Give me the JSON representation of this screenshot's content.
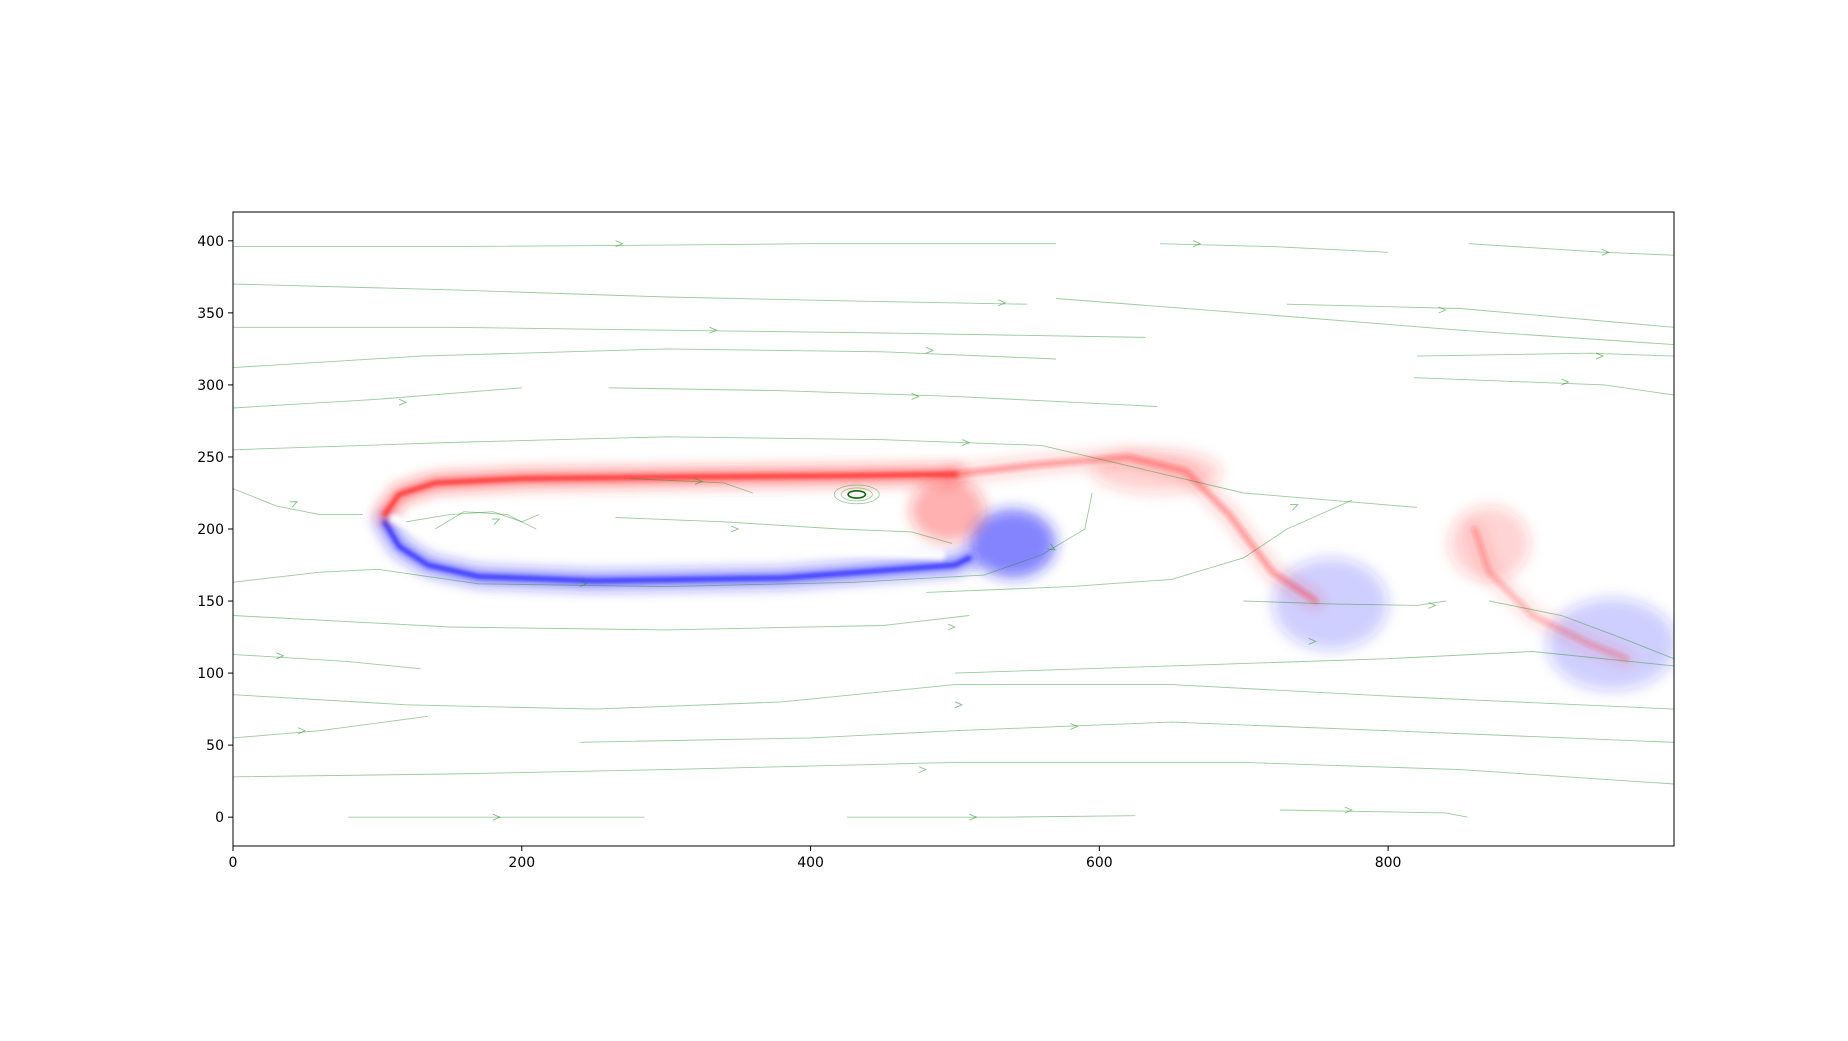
{
  "chart_data": {
    "type": "heatmap",
    "title": "",
    "xlabel": "",
    "ylabel": "",
    "xlim": [
      0,
      998
    ],
    "ylim": [
      420,
      -20
    ],
    "y_inverted": true,
    "grid": false,
    "legend": "none",
    "x_ticks": [
      0,
      200,
      400,
      600,
      800
    ],
    "y_ticks": [
      0,
      50,
      100,
      150,
      200,
      250,
      300,
      350,
      400
    ],
    "colormap": {
      "negative": "#2222ff",
      "zero": "#ffffff",
      "positive": "#ff2222"
    },
    "streamline_color": "#228b22",
    "field": {
      "extent": {
        "x": [
          0,
          998
        ],
        "y": [
          0,
          400
        ]
      },
      "background_shading": [
        {
          "y": [
            0,
            200
          ],
          "value": -0.08
        },
        {
          "y": [
            220,
            330
          ],
          "value": 0.05
        },
        {
          "y": [
            330,
            400
          ],
          "value": -0.02
        }
      ],
      "vortex_sheets": [
        {
          "sign": -1,
          "strength": 1.0,
          "points": [
            [
              105,
              205
            ],
            [
              115,
              188
            ],
            [
              135,
              175
            ],
            [
              170,
              167
            ],
            [
              250,
              164
            ],
            [
              380,
              166
            ],
            [
              500,
              175
            ],
            [
              510,
              180
            ]
          ]
        },
        {
          "sign": 1,
          "strength": 1.0,
          "points": [
            [
              105,
              210
            ],
            [
              115,
              224
            ],
            [
              140,
              232
            ],
            [
              200,
              235
            ],
            [
              300,
              236
            ],
            [
              420,
              237
            ],
            [
              500,
              238
            ]
          ]
        },
        {
          "sign": 1,
          "strength": 0.35,
          "points": [
            [
              500,
              238
            ],
            [
              560,
              245
            ],
            [
              620,
              250
            ],
            [
              660,
              240
            ],
            [
              690,
              210
            ],
            [
              720,
              170
            ],
            [
              750,
              150
            ]
          ]
        },
        {
          "sign": 1,
          "strength": 0.25,
          "points": [
            [
              860,
              200
            ],
            [
              870,
              170
            ],
            [
              900,
              140
            ],
            [
              940,
              120
            ],
            [
              965,
              110
            ]
          ]
        }
      ],
      "vortices": [
        {
          "x": 540,
          "y": 190,
          "rx": 30,
          "ry": 24,
          "sign": -1,
          "strength": 0.55
        },
        {
          "x": 495,
          "y": 213,
          "rx": 26,
          "ry": 22,
          "sign": 1,
          "strength": 0.35
        },
        {
          "x": 640,
          "y": 240,
          "rx": 45,
          "ry": 15,
          "sign": 1,
          "strength": 0.2
        },
        {
          "x": 760,
          "y": 148,
          "rx": 40,
          "ry": 32,
          "sign": -1,
          "strength": 0.22
        },
        {
          "x": 870,
          "y": 190,
          "rx": 28,
          "ry": 26,
          "sign": 1,
          "strength": 0.2
        },
        {
          "x": 955,
          "y": 120,
          "rx": 45,
          "ry": 32,
          "sign": -1,
          "strength": 0.22
        }
      ],
      "small_vortex": {
        "x": 432,
        "y": 224,
        "rx": 6,
        "ry": 2.5
      }
    },
    "streamlines": [
      [
        [
          80,
          0
        ],
        [
          200,
          0
        ],
        [
          285,
          0
        ]
      ],
      [
        [
          425,
          0
        ],
        [
          530,
          0
        ],
        [
          625,
          1
        ]
      ],
      [
        [
          725,
          5
        ],
        [
          840,
          3
        ],
        [
          855,
          0
        ]
      ],
      [
        [
          0,
          28
        ],
        [
          150,
          30
        ],
        [
          300,
          33
        ],
        [
          500,
          38
        ],
        [
          700,
          38
        ],
        [
          850,
          33
        ],
        [
          998,
          23
        ]
      ],
      [
        [
          0,
          55
        ],
        [
          60,
          60
        ],
        [
          135,
          70
        ]
      ],
      [
        [
          240,
          52
        ],
        [
          400,
          55
        ],
        [
          500,
          60
        ],
        [
          650,
          66
        ],
        [
          800,
          60
        ],
        [
          998,
          52
        ]
      ],
      [
        [
          0,
          85
        ],
        [
          120,
          78
        ],
        [
          250,
          75
        ],
        [
          380,
          80
        ],
        [
          500,
          92
        ],
        [
          650,
          92
        ],
        [
          800,
          84
        ],
        [
          998,
          75
        ]
      ],
      [
        [
          0,
          113
        ],
        [
          80,
          108
        ],
        [
          130,
          103
        ]
      ],
      [
        [
          500,
          100
        ],
        [
          650,
          105
        ],
        [
          800,
          110
        ],
        [
          900,
          115
        ],
        [
          998,
          105
        ]
      ],
      [
        [
          0,
          140
        ],
        [
          150,
          132
        ],
        [
          300,
          130
        ],
        [
          450,
          133
        ],
        [
          510,
          140
        ]
      ],
      [
        [
          0,
          163
        ],
        [
          60,
          170
        ],
        [
          100,
          172
        ],
        [
          170,
          162
        ],
        [
          300,
          160
        ],
        [
          430,
          163
        ],
        [
          520,
          168
        ],
        [
          560,
          182
        ],
        [
          590,
          200
        ],
        [
          595,
          225
        ]
      ],
      [
        [
          480,
          156
        ],
        [
          580,
          160
        ],
        [
          650,
          165
        ],
        [
          700,
          180
        ],
        [
          730,
          200
        ],
        [
          775,
          220
        ]
      ],
      [
        [
          700,
          150
        ],
        [
          760,
          148
        ],
        [
          820,
          147
        ],
        [
          840,
          150
        ]
      ],
      [
        [
          870,
          150
        ],
        [
          920,
          140
        ],
        [
          960,
          125
        ],
        [
          998,
          110
        ]
      ],
      [
        [
          0,
          228
        ],
        [
          30,
          216
        ],
        [
          60,
          210
        ],
        [
          90,
          210
        ]
      ],
      [
        [
          140,
          200
        ],
        [
          160,
          212
        ],
        [
          190,
          210
        ],
        [
          210,
          200
        ]
      ],
      [
        [
          120,
          205
        ],
        [
          150,
          210
        ],
        [
          180,
          212
        ],
        [
          200,
          205
        ],
        [
          212,
          210
        ]
      ],
      [
        [
          265,
          208
        ],
        [
          340,
          205
        ],
        [
          420,
          200
        ],
        [
          470,
          198
        ],
        [
          498,
          190
        ]
      ],
      [
        [
          275,
          235
        ],
        [
          340,
          232
        ],
        [
          360,
          225
        ]
      ],
      [
        [
          0,
          255
        ],
        [
          150,
          260
        ],
        [
          300,
          264
        ],
        [
          450,
          262
        ],
        [
          560,
          258
        ],
        [
          700,
          225
        ],
        [
          820,
          215
        ]
      ],
      [
        [
          0,
          284
        ],
        [
          100,
          290
        ],
        [
          200,
          298
        ]
      ],
      [
        [
          260,
          298
        ],
        [
          380,
          296
        ],
        [
          500,
          292
        ],
        [
          640,
          285
        ]
      ],
      [
        [
          0,
          312
        ],
        [
          130,
          320
        ],
        [
          300,
          325
        ],
        [
          450,
          323
        ],
        [
          570,
          318
        ]
      ],
      [
        [
          0,
          340
        ],
        [
          150,
          340
        ],
        [
          300,
          338
        ],
        [
          450,
          336
        ],
        [
          632,
          333
        ]
      ],
      [
        [
          0,
          370
        ],
        [
          150,
          366
        ],
        [
          300,
          361
        ],
        [
          440,
          358
        ],
        [
          550,
          356
        ]
      ],
      [
        [
          570,
          360
        ],
        [
          700,
          350
        ],
        [
          850,
          338
        ],
        [
          998,
          328
        ]
      ],
      [
        [
          0,
          396
        ],
        [
          150,
          396
        ],
        [
          300,
          397
        ],
        [
          400,
          398
        ],
        [
          570,
          398
        ]
      ],
      [
        [
          642,
          398
        ],
        [
          720,
          396
        ],
        [
          800,
          392
        ]
      ],
      [
        [
          818,
          305
        ],
        [
          950,
          300
        ],
        [
          998,
          293
        ]
      ],
      [
        [
          820,
          320
        ],
        [
          940,
          322
        ],
        [
          998,
          320
        ]
      ],
      [
        [
          856,
          398
        ],
        [
          950,
          392
        ],
        [
          998,
          390
        ]
      ],
      [
        [
          730,
          356
        ],
        [
          850,
          353
        ],
        [
          998,
          340
        ]
      ]
    ],
    "streamline_arrows": [
      [
        180,
        0,
        1,
        0
      ],
      [
        510,
        0,
        1,
        0
      ],
      [
        770,
        5,
        1,
        0
      ],
      [
        475,
        33,
        1,
        0
      ],
      [
        45,
        60,
        1,
        0
      ],
      [
        580,
        63,
        1,
        0
      ],
      [
        500,
        78,
        1,
        0
      ],
      [
        30,
        112,
        1,
        0
      ],
      [
        745,
        122,
        1,
        0
      ],
      [
        495,
        132,
        1,
        0
      ],
      [
        240,
        162,
        1,
        0
      ],
      [
        565,
        188,
        1,
        0.4
      ],
      [
        40,
        217,
        1,
        -0.3
      ],
      [
        180,
        205,
        1,
        -0.3
      ],
      [
        345,
        200,
        1,
        0
      ],
      [
        320,
        233,
        1,
        0
      ],
      [
        505,
        260,
        1,
        0
      ],
      [
        733,
        215,
        1,
        -0.3
      ],
      [
        828,
        147,
        1,
        0
      ],
      [
        115,
        288,
        1,
        0
      ],
      [
        470,
        292,
        1,
        0
      ],
      [
        480,
        324,
        1,
        0
      ],
      [
        330,
        338,
        1,
        0
      ],
      [
        530,
        357,
        1,
        0
      ],
      [
        265,
        398,
        1,
        0
      ],
      [
        665,
        398,
        1,
        0
      ],
      [
        920,
        302,
        1,
        0
      ],
      [
        944,
        320,
        1,
        0
      ],
      [
        948,
        392,
        1,
        0
      ],
      [
        835,
        352,
        1,
        0
      ]
    ]
  }
}
